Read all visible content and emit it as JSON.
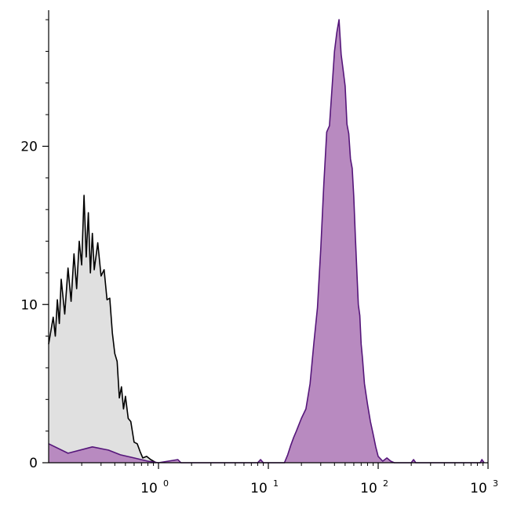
{
  "chart_data": {
    "type": "area",
    "title": "",
    "xlabel": "",
    "ylabel": "",
    "x_scale": "log",
    "xlim": [
      0.1,
      1000
    ],
    "ylim": [
      0,
      28.6
    ],
    "grid": false,
    "x_ticks": [
      {
        "value": 1,
        "base": "10",
        "exp": "0"
      },
      {
        "value": 10,
        "base": "10",
        "exp": "1"
      },
      {
        "value": 100,
        "base": "10",
        "exp": "2"
      },
      {
        "value": 1000,
        "base": "10",
        "exp": "3"
      }
    ],
    "y_ticks": [
      {
        "value": 0,
        "label": "0"
      },
      {
        "value": 10,
        "label": "10"
      },
      {
        "value": 20,
        "label": "20"
      }
    ],
    "series": [
      {
        "fill": "#e0e0e0",
        "stroke": "#000000",
        "points": [
          [
            0.1,
            7.5
          ],
          [
            0.11,
            9.2
          ],
          [
            0.115,
            8.0
          ],
          [
            0.12,
            10.3
          ],
          [
            0.125,
            8.8
          ],
          [
            0.13,
            11.6
          ],
          [
            0.14,
            9.4
          ],
          [
            0.15,
            12.3
          ],
          [
            0.16,
            10.2
          ],
          [
            0.17,
            13.2
          ],
          [
            0.18,
            11.0
          ],
          [
            0.19,
            14.0
          ],
          [
            0.2,
            12.5
          ],
          [
            0.21,
            16.9
          ],
          [
            0.22,
            13.0
          ],
          [
            0.23,
            15.8
          ],
          [
            0.24,
            12.0
          ],
          [
            0.25,
            14.5
          ],
          [
            0.26,
            12.2
          ],
          [
            0.28,
            13.9
          ],
          [
            0.3,
            11.8
          ],
          [
            0.32,
            12.2
          ],
          [
            0.34,
            10.3
          ],
          [
            0.36,
            10.4
          ],
          [
            0.38,
            8.2
          ],
          [
            0.4,
            6.9
          ],
          [
            0.42,
            6.4
          ],
          [
            0.44,
            4.1
          ],
          [
            0.46,
            4.8
          ],
          [
            0.48,
            3.4
          ],
          [
            0.5,
            4.2
          ],
          [
            0.53,
            2.8
          ],
          [
            0.56,
            2.6
          ],
          [
            0.6,
            1.3
          ],
          [
            0.64,
            1.2
          ],
          [
            0.68,
            0.7
          ],
          [
            0.72,
            0.3
          ],
          [
            0.78,
            0.4
          ],
          [
            0.85,
            0.2
          ],
          [
            0.95,
            0
          ]
        ]
      },
      {
        "fill": "#b88ac0",
        "stroke": "#55167a",
        "points": [
          [
            0.1,
            1.2
          ],
          [
            0.15,
            0.6
          ],
          [
            0.25,
            1.0
          ],
          [
            0.35,
            0.8
          ],
          [
            0.45,
            0.5
          ],
          [
            0.6,
            0.3
          ],
          [
            0.8,
            0.1
          ],
          [
            1.0,
            0
          ],
          [
            1.5,
            0.2
          ],
          [
            1.6,
            0
          ],
          [
            8,
            0
          ],
          [
            8.5,
            0.2
          ],
          [
            9,
            0
          ],
          [
            14,
            0
          ],
          [
            15,
            0.5
          ],
          [
            16,
            1.1
          ],
          [
            17,
            1.6
          ],
          [
            18,
            2.0
          ],
          [
            20,
            2.8
          ],
          [
            22,
            3.4
          ],
          [
            24,
            5.0
          ],
          [
            26,
            7.6
          ],
          [
            28,
            9.8
          ],
          [
            30,
            13.5
          ],
          [
            32,
            17.6
          ],
          [
            34,
            20.9
          ],
          [
            36,
            21.3
          ],
          [
            38,
            23.7
          ],
          [
            40,
            26.0
          ],
          [
            42,
            27.2
          ],
          [
            44,
            28.0
          ],
          [
            46,
            25.8
          ],
          [
            48,
            24.8
          ],
          [
            50,
            23.8
          ],
          [
            52,
            21.4
          ],
          [
            54,
            20.8
          ],
          [
            56,
            19.2
          ],
          [
            58,
            18.6
          ],
          [
            60,
            16.8
          ],
          [
            62,
            14.3
          ],
          [
            64,
            12.0
          ],
          [
            66,
            10.0
          ],
          [
            68,
            9.3
          ],
          [
            70,
            7.5
          ],
          [
            72,
            6.6
          ],
          [
            75,
            5.0
          ],
          [
            80,
            3.7
          ],
          [
            85,
            2.6
          ],
          [
            90,
            1.8
          ],
          [
            95,
            1.0
          ],
          [
            100,
            0.4
          ],
          [
            110,
            0.1
          ],
          [
            120,
            0.3
          ],
          [
            130,
            0.1
          ],
          [
            140,
            0
          ],
          [
            200,
            0
          ],
          [
            210,
            0.2
          ],
          [
            220,
            0
          ],
          [
            850,
            0
          ],
          [
            880,
            0.2
          ],
          [
            920,
            0
          ]
        ]
      }
    ]
  }
}
